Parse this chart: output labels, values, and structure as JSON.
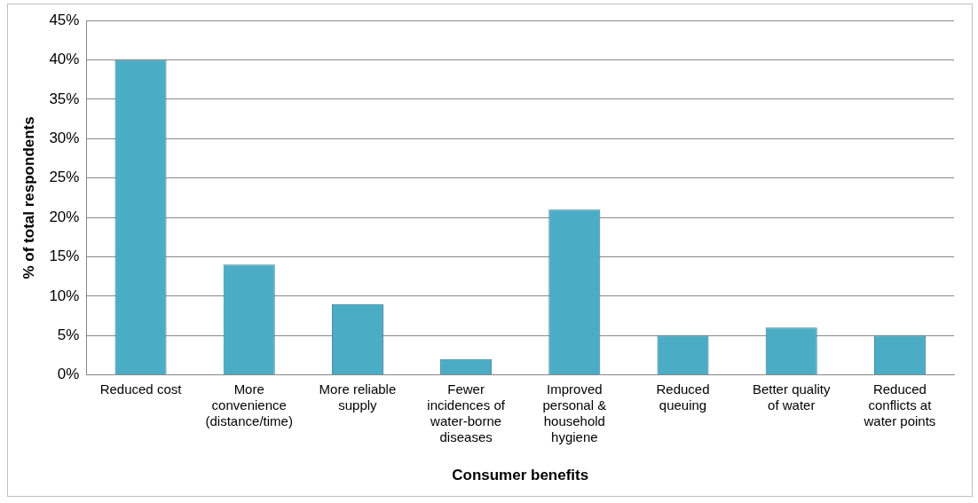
{
  "chart_data": {
    "type": "bar",
    "xlabel": "Consumer benefits",
    "ylabel": "% of total respondents",
    "categories": [
      "Reduced cost",
      "More convenience (distance/time)",
      "More reliable supply",
      "Fewer incidences of water-borne diseases",
      "Improved personal & household hygiene",
      "Reduced queuing",
      "Better quality of water",
      "Reduced conflicts at water points"
    ],
    "values": [
      40,
      14,
      9,
      2,
      21,
      5,
      6,
      5
    ],
    "color": "#4bacc6",
    "ylim": [
      0,
      45
    ],
    "yticks": [
      {
        "value": 0,
        "label": "0%"
      },
      {
        "value": 5,
        "label": "5%"
      },
      {
        "value": 10,
        "label": "10%"
      },
      {
        "value": 15,
        "label": "15%"
      },
      {
        "value": 20,
        "label": "20%"
      },
      {
        "value": 25,
        "label": "25%"
      },
      {
        "value": 30,
        "label": "30%"
      },
      {
        "value": 35,
        "label": "35%"
      },
      {
        "value": 40,
        "label": "40%"
      },
      {
        "value": 45,
        "label": "45%"
      }
    ],
    "grid": "y",
    "legend": false
  }
}
